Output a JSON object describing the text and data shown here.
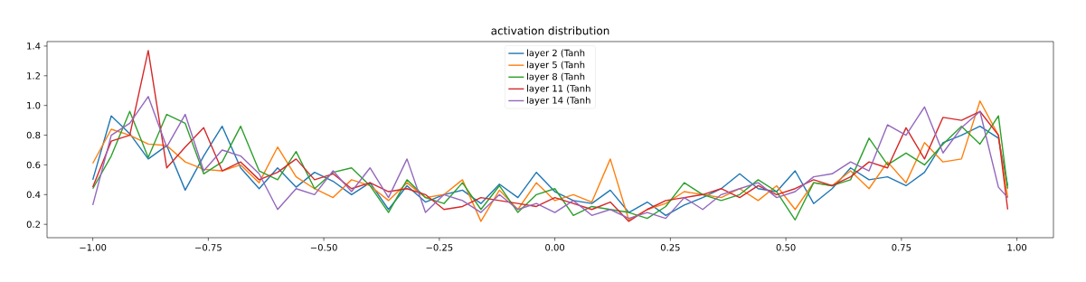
{
  "chart_data": {
    "type": "line",
    "title": "activation distribution",
    "x": [
      -1.0,
      -0.96,
      -0.92,
      -0.88,
      -0.84,
      -0.8,
      -0.76,
      -0.72,
      -0.68,
      -0.64,
      -0.6,
      -0.56,
      -0.52,
      -0.48,
      -0.44,
      -0.4,
      -0.36,
      -0.32,
      -0.28,
      -0.24,
      -0.2,
      -0.16,
      -0.12,
      -0.08,
      -0.04,
      0.0,
      0.04,
      0.08,
      0.12,
      0.16,
      0.2,
      0.24,
      0.28,
      0.32,
      0.36,
      0.4,
      0.44,
      0.48,
      0.52,
      0.56,
      0.6,
      0.64,
      0.68,
      0.72,
      0.76,
      0.8,
      0.84,
      0.88,
      0.92,
      0.96,
      0.98
    ],
    "series": [
      {
        "name": "layer 2 (Tanh",
        "color": "#1f77b4",
        "values": [
          0.5,
          0.93,
          0.81,
          0.64,
          0.73,
          0.43,
          0.66,
          0.86,
          0.58,
          0.44,
          0.58,
          0.45,
          0.55,
          0.49,
          0.4,
          0.48,
          0.3,
          0.46,
          0.35,
          0.4,
          0.43,
          0.34,
          0.47,
          0.38,
          0.55,
          0.42,
          0.36,
          0.34,
          0.43,
          0.28,
          0.35,
          0.26,
          0.33,
          0.38,
          0.44,
          0.54,
          0.44,
          0.42,
          0.56,
          0.34,
          0.44,
          0.58,
          0.5,
          0.52,
          0.46,
          0.55,
          0.75,
          0.8,
          0.86,
          0.78,
          0.46
        ]
      },
      {
        "name": "layer 5 (Tanh",
        "color": "#ff7f0e",
        "values": [
          0.61,
          0.84,
          0.8,
          0.74,
          0.73,
          0.62,
          0.57,
          0.56,
          0.6,
          0.48,
          0.72,
          0.52,
          0.44,
          0.38,
          0.5,
          0.46,
          0.36,
          0.48,
          0.38,
          0.4,
          0.5,
          0.22,
          0.43,
          0.3,
          0.48,
          0.36,
          0.4,
          0.35,
          0.64,
          0.23,
          0.3,
          0.34,
          0.42,
          0.4,
          0.38,
          0.44,
          0.36,
          0.46,
          0.3,
          0.48,
          0.46,
          0.56,
          0.44,
          0.62,
          0.48,
          0.75,
          0.62,
          0.64,
          1.03,
          0.8,
          0.38
        ]
      },
      {
        "name": "layer 8 (Tanh",
        "color": "#2ca02c",
        "values": [
          0.44,
          0.66,
          0.96,
          0.65,
          0.94,
          0.88,
          0.54,
          0.62,
          0.86,
          0.56,
          0.5,
          0.69,
          0.44,
          0.55,
          0.58,
          0.46,
          0.28,
          0.5,
          0.38,
          0.34,
          0.48,
          0.3,
          0.46,
          0.28,
          0.4,
          0.44,
          0.26,
          0.32,
          0.3,
          0.28,
          0.24,
          0.32,
          0.48,
          0.4,
          0.36,
          0.4,
          0.5,
          0.42,
          0.23,
          0.48,
          0.46,
          0.5,
          0.78,
          0.6,
          0.68,
          0.6,
          0.74,
          0.86,
          0.74,
          0.93,
          0.44
        ]
      },
      {
        "name": "layer 11 (Tanh",
        "color": "#d62728",
        "values": [
          0.45,
          0.76,
          0.8,
          1.37,
          0.58,
          0.72,
          0.85,
          0.56,
          0.62,
          0.5,
          0.55,
          0.64,
          0.5,
          0.54,
          0.44,
          0.48,
          0.42,
          0.44,
          0.4,
          0.3,
          0.32,
          0.38,
          0.36,
          0.34,
          0.32,
          0.38,
          0.34,
          0.3,
          0.35,
          0.22,
          0.3,
          0.36,
          0.38,
          0.4,
          0.44,
          0.38,
          0.46,
          0.4,
          0.44,
          0.5,
          0.46,
          0.52,
          0.62,
          0.58,
          0.85,
          0.64,
          0.92,
          0.9,
          0.96,
          0.8,
          0.3
        ]
      },
      {
        "name": "layer 14 (Tanh",
        "color": "#9467bd",
        "values": [
          0.33,
          0.8,
          0.88,
          1.06,
          0.72,
          0.94,
          0.56,
          0.7,
          0.66,
          0.54,
          0.3,
          0.44,
          0.4,
          0.56,
          0.42,
          0.58,
          0.38,
          0.64,
          0.28,
          0.4,
          0.36,
          0.28,
          0.4,
          0.3,
          0.34,
          0.28,
          0.36,
          0.26,
          0.3,
          0.24,
          0.28,
          0.24,
          0.38,
          0.3,
          0.4,
          0.44,
          0.48,
          0.38,
          0.42,
          0.52,
          0.54,
          0.62,
          0.56,
          0.87,
          0.8,
          0.99,
          0.68,
          0.85,
          0.96,
          0.45,
          0.38
        ]
      }
    ],
    "xlim": [
      -1.099,
      1.079
    ],
    "ylim": [
      0.11,
      1.43
    ],
    "xticks": [
      {
        "value": -1.0,
        "label": "−1.00"
      },
      {
        "value": -0.75,
        "label": "−0.75"
      },
      {
        "value": -0.5,
        "label": "−0.50"
      },
      {
        "value": -0.25,
        "label": "−0.25"
      },
      {
        "value": 0.0,
        "label": "0.00"
      },
      {
        "value": 0.25,
        "label": "0.25"
      },
      {
        "value": 0.5,
        "label": "0.50"
      },
      {
        "value": 0.75,
        "label": "0.75"
      },
      {
        "value": 1.0,
        "label": "1.00"
      }
    ],
    "yticks": [
      {
        "value": 0.2,
        "label": "0.2"
      },
      {
        "value": 0.4,
        "label": "0.4"
      },
      {
        "value": 0.6,
        "label": "0.6"
      },
      {
        "value": 0.8,
        "label": "0.8"
      },
      {
        "value": 1.0,
        "label": "1.0"
      },
      {
        "value": 1.2,
        "label": "1.2"
      },
      {
        "value": 1.4,
        "label": "1.4"
      }
    ],
    "legend": "top",
    "grid": false,
    "marker": "none",
    "line_style": "solid"
  }
}
